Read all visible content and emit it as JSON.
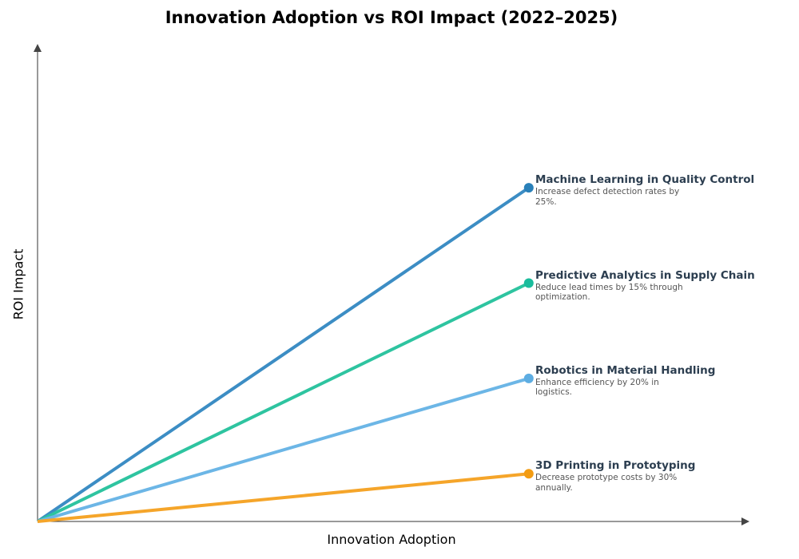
{
  "chart_data": {
    "type": "line",
    "title": "Innovation Adoption vs ROI Impact (2022–2025)",
    "xlabel": "Innovation Adoption",
    "ylabel": "ROI Impact",
    "xlim": [
      0,
      1
    ],
    "ylim": [
      0,
      1
    ],
    "grid": false,
    "legend": "none",
    "series": [
      {
        "name": "Machine Learning in Quality Control",
        "description": "Increase defect detection rates by 25%.",
        "x": [
          0,
          0.69
        ],
        "y": [
          0,
          0.7
        ],
        "color": "#3c8dc4",
        "marker_color": "#2980b9"
      },
      {
        "name": "Predictive Analytics in Supply Chain",
        "description": "Reduce lead times by 15% through optimization.",
        "x": [
          0,
          0.69
        ],
        "y": [
          0,
          0.5
        ],
        "color": "#2ec4a0",
        "marker_color": "#1abc9c"
      },
      {
        "name": "Robotics in Material Handling",
        "description": "Enhance efficiency by 20% in logistics.",
        "x": [
          0,
          0.69
        ],
        "y": [
          0,
          0.3
        ],
        "color": "#6cb6e6",
        "marker_color": "#5dade2"
      },
      {
        "name": "3D Printing in Prototyping",
        "description": "Decrease prototype costs by 30% annually.",
        "x": [
          0,
          0.69
        ],
        "y": [
          0,
          0.1
        ],
        "color": "#f5a52a",
        "marker_color": "#f39c12"
      }
    ]
  }
}
